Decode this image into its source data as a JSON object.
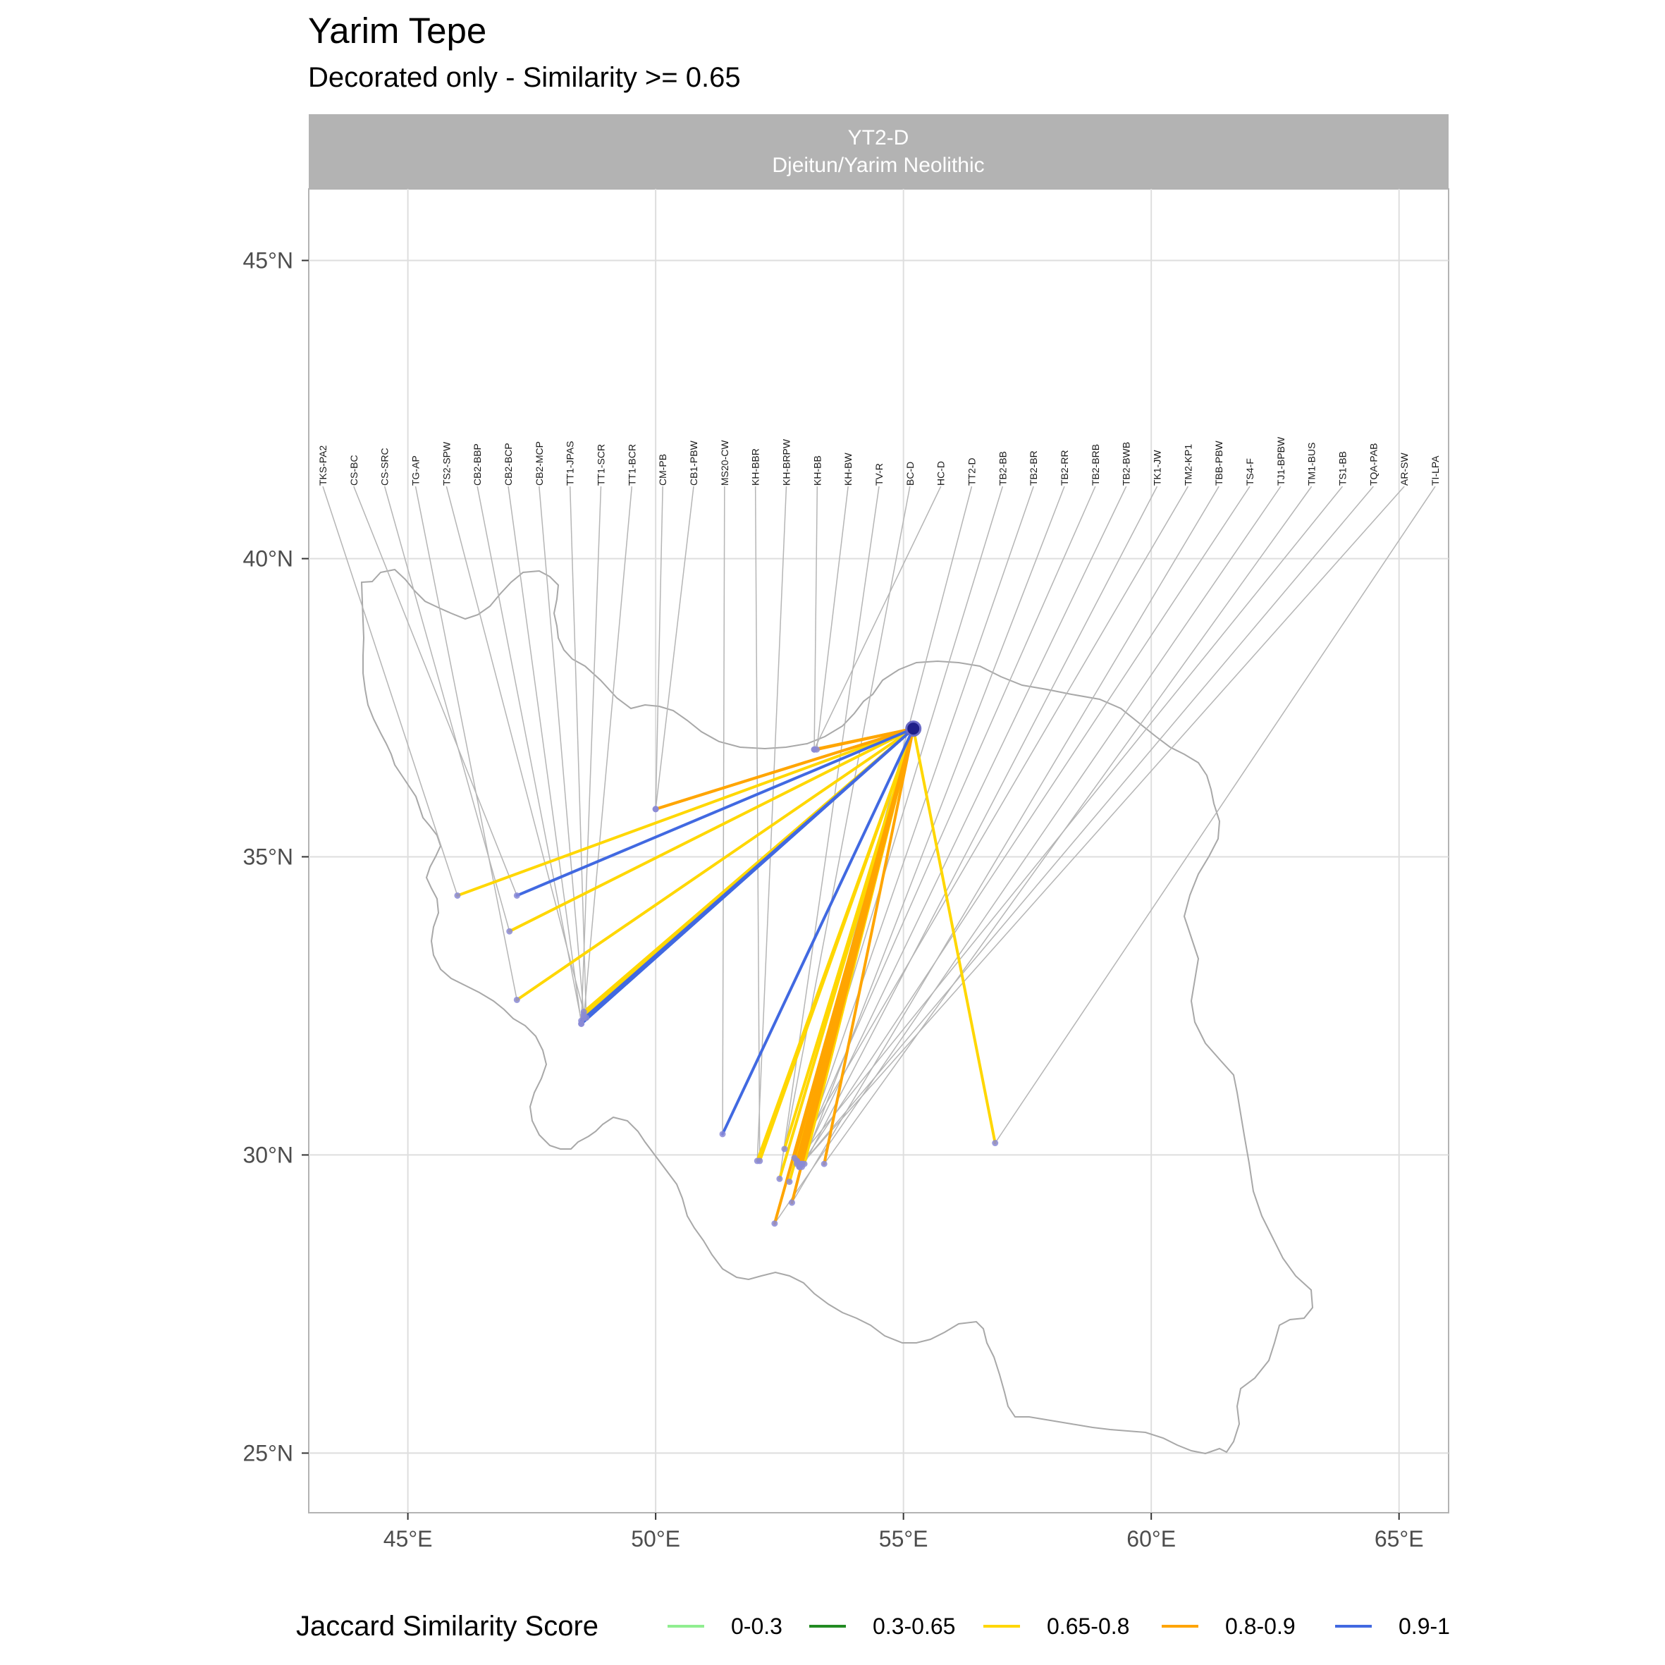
{
  "title": "Yarim Tepe",
  "subtitle": "Decorated only - Similarity >= 0.65",
  "panel": {
    "code": "YT2-D",
    "name": "Djeitun/Yarim Neolithic"
  },
  "axes": {
    "lon_ticks": [
      {
        "value": 45,
        "label": "45°E"
      },
      {
        "value": 50,
        "label": "50°E"
      },
      {
        "value": 55,
        "label": "55°E"
      },
      {
        "value": 60,
        "label": "60°E"
      },
      {
        "value": 65,
        "label": "65°E"
      }
    ],
    "lat_ticks": [
      {
        "value": 45,
        "label": "45°N"
      },
      {
        "value": 40,
        "label": "40°N"
      },
      {
        "value": 35,
        "label": "35°N"
      },
      {
        "value": 30,
        "label": "30°N"
      },
      {
        "value": 25,
        "label": "25°N"
      }
    ],
    "lon_range": [
      43.0,
      66.0
    ],
    "lat_range": [
      24.0,
      46.2
    ]
  },
  "legend": {
    "title": "Jaccard Similarity Score",
    "placement": "bottom",
    "items": [
      {
        "label": "0-0.3",
        "color": "#90EE90"
      },
      {
        "label": "0.3-0.65",
        "color": "#228B22"
      },
      {
        "label": "0.65-0.8",
        "color": "#FFD700"
      },
      {
        "label": "0.8-0.9",
        "color": "#FFA500"
      },
      {
        "label": "0.9-1",
        "color": "#4169E1"
      }
    ]
  },
  "chart_data": {
    "type": "scatter",
    "title": "Yarim Tepe",
    "subtitle": "Decorated only - Similarity >= 0.65",
    "focal_site": {
      "lon": 55.2,
      "lat": 37.15
    },
    "site_labels": [
      "TKS-PA2",
      "CS-BC",
      "CS-SRC",
      "TG-AP",
      "TS2-SPW",
      "CB2-BBP",
      "CB2-BCP",
      "CB2-MCP",
      "TT1-JPAS",
      "TT1-SCR",
      "TT1-BCR",
      "CM-PB",
      "CB1-PBW",
      "MS20-CW",
      "KH-BBR",
      "KH-BRPW",
      "KH-BB",
      "KH-BW",
      "TV-R",
      "BC-D",
      "HC-D",
      "TT2-D",
      "TB2-BB",
      "TB2-BR",
      "TB2-RR",
      "TB2-BRB",
      "TB2-BWB",
      "TK1-JW",
      "TM2-KP1",
      "TBB-PBW",
      "TS4-F",
      "TJ1-BPBW",
      "TM1-BUS",
      "TS1-BB",
      "TQA-PAB",
      "AR-SW",
      "TI-LPA"
    ],
    "sites": [
      {
        "label": "TKS-PA2",
        "lon": 46.0,
        "lat": 34.35,
        "score_class": "0.65-0.8"
      },
      {
        "label": "CS-BC",
        "lon": 47.2,
        "lat": 34.35,
        "score_class": "0.9-1"
      },
      {
        "label": "CS-SRC",
        "lon": 47.05,
        "lat": 33.75,
        "score_class": "0.65-0.8"
      },
      {
        "label": "TG-AP",
        "lon": 47.2,
        "lat": 32.6,
        "score_class": "0.65-0.8"
      },
      {
        "label": "TS2-SPW",
        "lon": 48.55,
        "lat": 32.4,
        "score_class": "0.65-0.8"
      },
      {
        "label": "CB2-BBP",
        "lon": 48.5,
        "lat": 32.25,
        "score_class": "0.9-1"
      },
      {
        "label": "CB2-BCP",
        "lon": 48.5,
        "lat": 32.2,
        "score_class": "0.9-1"
      },
      {
        "label": "CB2-MCP",
        "lon": 48.55,
        "lat": 32.35,
        "score_class": "0.65-0.8"
      },
      {
        "label": "TT1-JPAS",
        "lon": 48.6,
        "lat": 32.3,
        "score_class": "0.65-0.8"
      },
      {
        "label": "TT1-SCR",
        "lon": 48.5,
        "lat": 32.2,
        "score_class": "0.9-1"
      },
      {
        "label": "TT1-BCR",
        "lon": 48.55,
        "lat": 32.3,
        "score_class": "0.65-0.8"
      },
      {
        "label": "CM-PB",
        "lon": 50.0,
        "lat": 35.8,
        "score_class": "0.8-0.9"
      },
      {
        "label": "CB1-PBW",
        "lon": 50.0,
        "lat": 35.8,
        "score_class": "0.8-0.9"
      },
      {
        "label": "MS20-CW",
        "lon": 51.35,
        "lat": 30.35,
        "score_class": "0.9-1"
      },
      {
        "label": "KH-BBR",
        "lon": 52.1,
        "lat": 29.9,
        "score_class": "0.65-0.8"
      },
      {
        "label": "KH-BRPW",
        "lon": 52.05,
        "lat": 29.9,
        "score_class": "0.65-0.8"
      },
      {
        "label": "KH-BB",
        "lon": 53.2,
        "lat": 36.8,
        "score_class": "0.8-0.9"
      },
      {
        "label": "KH-BW",
        "lon": 53.25,
        "lat": 36.8,
        "score_class": "0.8-0.9"
      },
      {
        "label": "TV-R",
        "lon": 52.5,
        "lat": 29.6,
        "score_class": "0.65-0.8"
      },
      {
        "label": "BC-D",
        "lon": 52.6,
        "lat": 30.1,
        "score_class": "0.65-0.8"
      },
      {
        "label": "HC-D",
        "lon": 53.2,
        "lat": 36.8,
        "score_class": "0.65-0.8"
      },
      {
        "label": "TT2-D",
        "lon": 52.7,
        "lat": 29.55,
        "score_class": "0.65-0.8"
      },
      {
        "label": "TB2-BB",
        "lon": 52.85,
        "lat": 29.9,
        "score_class": "0.8-0.9"
      },
      {
        "label": "TB2-BR",
        "lon": 52.9,
        "lat": 29.85,
        "score_class": "0.8-0.9"
      },
      {
        "label": "TB2-RR",
        "lon": 52.95,
        "lat": 29.8,
        "score_class": "0.65-0.8"
      },
      {
        "label": "TB2-BRB",
        "lon": 52.85,
        "lat": 29.85,
        "score_class": "0.8-0.9"
      },
      {
        "label": "TB2-BWB",
        "lon": 52.9,
        "lat": 29.8,
        "score_class": "0.65-0.8"
      },
      {
        "label": "TK1-JW",
        "lon": 53.0,
        "lat": 29.85,
        "score_class": "0.65-0.8"
      },
      {
        "label": "TM2-KP1",
        "lon": 52.8,
        "lat": 29.95,
        "score_class": "0.8-0.9"
      },
      {
        "label": "TBB-PBW",
        "lon": 52.75,
        "lat": 29.2,
        "score_class": "0.8-0.9"
      },
      {
        "label": "TS4-F",
        "lon": 52.95,
        "lat": 29.85,
        "score_class": "0.8-0.9"
      },
      {
        "label": "TJ1-BPBW",
        "lon": 52.4,
        "lat": 28.85,
        "score_class": "0.8-0.9"
      },
      {
        "label": "TM1-BUS",
        "lon": 53.4,
        "lat": 29.85,
        "score_class": "0.8-0.9"
      },
      {
        "label": "TS1-BB",
        "lon": 52.85,
        "lat": 29.9,
        "score_class": "0.65-0.8"
      },
      {
        "label": "TQA-PAB",
        "lon": 52.9,
        "lat": 29.8,
        "score_class": "0.65-0.8"
      },
      {
        "label": "AR-SW",
        "lon": 52.95,
        "lat": 29.85,
        "score_class": "0.65-0.8"
      },
      {
        "label": "TI-LPA",
        "lon": 56.85,
        "lat": 30.2,
        "score_class": "0.65-0.8"
      }
    ]
  }
}
